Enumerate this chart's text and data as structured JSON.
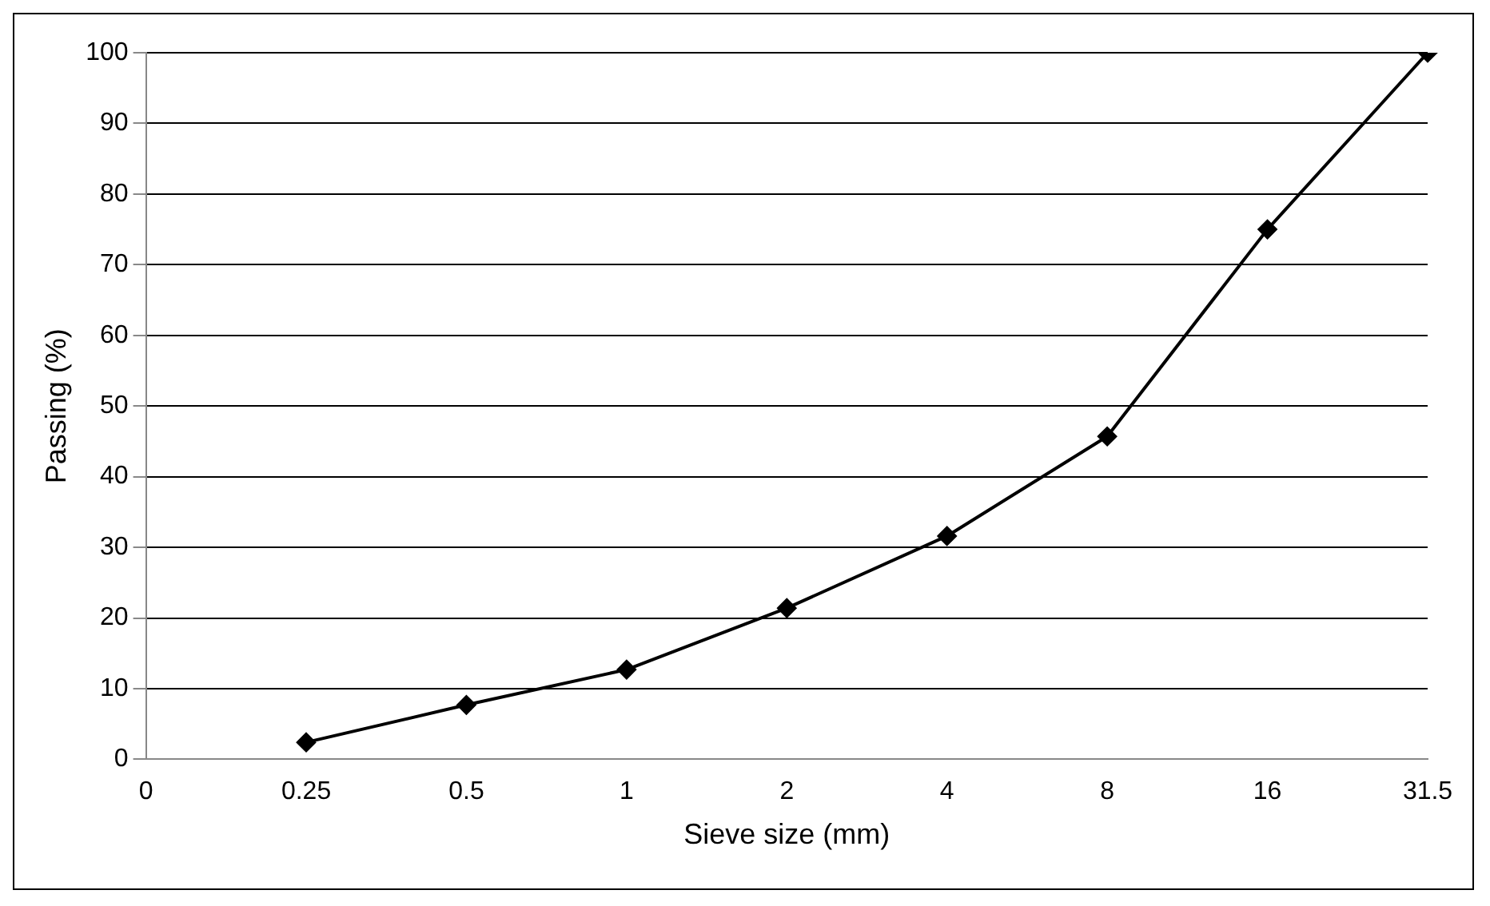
{
  "chart_data": {
    "type": "line",
    "xlabel": "Sieve size (mm)",
    "ylabel": "Passing (%)",
    "categories": [
      "0",
      "0.25",
      "0.5",
      "1",
      "2",
      "4",
      "8",
      "16",
      "31.5"
    ],
    "series": [
      {
        "color": "#000000",
        "values": [
          null,
          2.4,
          7.7,
          12.7,
          21.4,
          31.6,
          45.7,
          75,
          100
        ]
      }
    ],
    "ylim": [
      0,
      100
    ],
    "yticks": [
      0,
      10,
      20,
      30,
      40,
      50,
      60,
      70,
      80,
      90,
      100
    ],
    "grid": "y",
    "legend": false,
    "marker": "diamond",
    "line_style": "solid"
  }
}
